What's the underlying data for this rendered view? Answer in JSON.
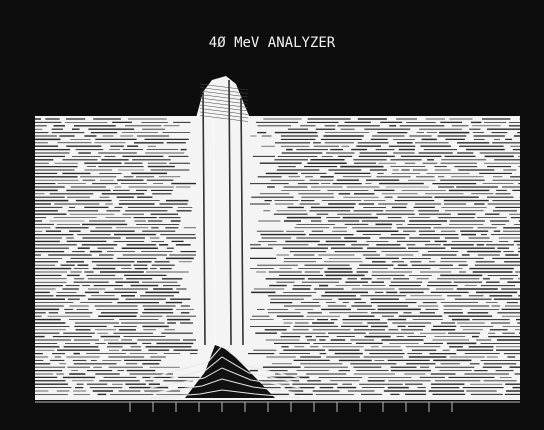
{
  "title": "4Ø MeV ANALYZER"
}
